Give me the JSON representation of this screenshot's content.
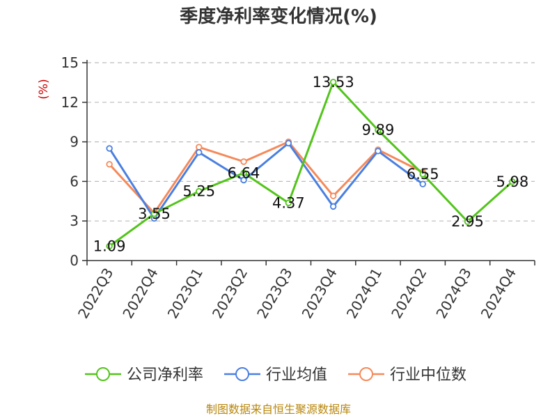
{
  "chart_data": {
    "type": "line",
    "title": "季度净利率变化情况(%)",
    "ylabel": "(%)",
    "ylim": [
      0,
      15
    ],
    "yticks": [
      0,
      3,
      6,
      9,
      12,
      15
    ],
    "grid": true,
    "legend_position": "bottom",
    "categories": [
      "2022Q3",
      "2022Q4",
      "2023Q1",
      "2023Q2",
      "2023Q3",
      "2023Q4",
      "2024Q1",
      "2024Q2",
      "2024Q3",
      "2024Q4"
    ],
    "series": [
      {
        "name": "公司净利率",
        "color": "#52c41a",
        "values": [
          1.09,
          3.55,
          5.25,
          6.64,
          4.37,
          13.53,
          9.89,
          6.55,
          2.95,
          5.98
        ],
        "labels": [
          "1.09",
          "3.55",
          "5.25",
          "6.64",
          "4.37",
          "13.53",
          "9.89",
          "6.55",
          "2.95",
          "5.98"
        ]
      },
      {
        "name": "行业均值",
        "color": "#4a7fe0",
        "values": [
          8.5,
          3.2,
          8.2,
          6.1,
          8.9,
          4.1,
          8.3,
          5.8,
          null,
          null
        ]
      },
      {
        "name": "行业中位数",
        "color": "#f5895a",
        "values": [
          7.3,
          3.6,
          8.6,
          7.5,
          9.0,
          4.9,
          8.4,
          6.7,
          null,
          null
        ]
      }
    ],
    "source": "制图数据来自恒生聚源数据库"
  }
}
